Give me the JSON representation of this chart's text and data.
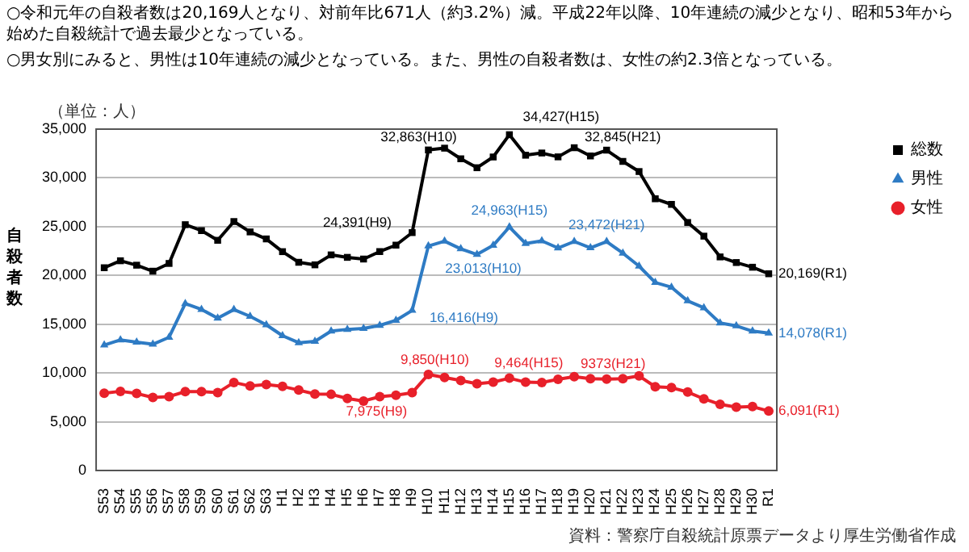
{
  "chart_data": {
    "type": "line",
    "title": "○令和元年の自殺者数は20,169人となり、対前年比671人（約3.2%）減。平成22年以降、10年連続の減少となり、昭和53年から始めた自殺統計で過去最少となっている。",
    "subtitle": "○男女別にみると、男性は10年連続の減少となっている。また、男性の自殺者数は、女性の約2.3倍となっている。",
    "ylabel": "自殺者数",
    "categories": [
      "S53",
      "S54",
      "S55",
      "S56",
      "S57",
      "S58",
      "S59",
      "S60",
      "S61",
      "S62",
      "S63",
      "H1",
      "H2",
      "H3",
      "H4",
      "H5",
      "H6",
      "H7",
      "H8",
      "H9",
      "H10",
      "H11",
      "H12",
      "H13",
      "H14",
      "H15",
      "H16",
      "H17",
      "H18",
      "H19",
      "H20",
      "H21",
      "H22",
      "H23",
      "H24",
      "H25",
      "H26",
      "H27",
      "H28",
      "H29",
      "H30",
      "R1"
    ],
    "series": [
      {
        "name": "総数",
        "color": "#000000",
        "marker": "square",
        "values": [
          20788,
          21503,
          21048,
          20434,
          21228,
          25202,
          24596,
          23599,
          25524,
          24460,
          23742,
          22436,
          21346,
          21084,
          22104,
          21851,
          21679,
          22445,
          23104,
          24391,
          32863,
          33048,
          31957,
          31042,
          32143,
          34427,
          32325,
          32552,
          32155,
          33093,
          32249,
          32845,
          31690,
          30651,
          27858,
          27283,
          25427,
          24025,
          21897,
          21321,
          20840,
          20169
        ]
      },
      {
        "name": "男性",
        "color": "#2e7bc4",
        "marker": "triangle",
        "values": [
          12859,
          13386,
          13155,
          12942,
          13654,
          17116,
          16508,
          15624,
          16497,
          15802,
          14934,
          13818,
          13102,
          13242,
          14296,
          14468,
          14560,
          14874,
          15393,
          16416,
          23013,
          23512,
          22727,
          22144,
          23080,
          24963,
          23272,
          23540,
          22813,
          23478,
          22831,
          23472,
          22283,
          20955,
          19273,
          18787,
          17386,
          16681,
          15121,
          14826,
          14290,
          14078
        ]
      },
      {
        "name": "女性",
        "color": "#e8202a",
        "marker": "circle",
        "values": [
          7929,
          8117,
          7893,
          7492,
          7574,
          8086,
          8088,
          7975,
          9027,
          8658,
          8808,
          8618,
          8244,
          7842,
          7808,
          7383,
          7119,
          7571,
          7711,
          7975,
          9850,
          9536,
          9230,
          8898,
          9063,
          9464,
          9053,
          9012,
          9342,
          9615,
          9418,
          9373,
          9407,
          9696,
          8585,
          8496,
          8041,
          7344,
          6776,
          6495,
          6550,
          6091
        ]
      }
    ],
    "ylim": [
      0,
      35000
    ],
    "yticks": [
      0,
      {
        "value": 5000,
        "label": "5,000"
      },
      {
        "value": 10000,
        "label": "10,000"
      },
      {
        "value": 15000,
        "label": "15,000"
      },
      {
        "value": 20000,
        "label": "20,000"
      },
      {
        "value": 25000,
        "label": "25,000"
      },
      {
        "value": 30000,
        "label": "30,000"
      },
      {
        "value": 35000,
        "label": "35,000"
      }
    ],
    "grid": "y",
    "legend": "right",
    "line_style": "solid",
    "annotations": [
      "（単位：人）",
      "資料：警察庁自殺統計原票データより厚生労働省作成",
      {
        "text": "24,391(H9)",
        "x": "H9",
        "y": 24391
      },
      {
        "text": "32,863(H10)",
        "x": "H10",
        "y": 32863
      },
      {
        "text": "34,427(H15)",
        "x": "H15",
        "y": 34427
      },
      {
        "text": "32,845(H21)",
        "x": "H21",
        "y": 32845
      },
      {
        "text": "20,169(R1)",
        "x": "R1",
        "y": 20169
      },
      {
        "text": "16,416(H9)",
        "x": "H9",
        "y": 16416
      },
      {
        "text": "23,013(H10)",
        "x": "H10",
        "y": 23013
      },
      {
        "text": "24,963(H15)",
        "x": "H15",
        "y": 24963
      },
      {
        "text": "23,472(H21)",
        "x": "H21",
        "y": 23472
      },
      {
        "text": "14,078(R1)",
        "x": "R1",
        "y": 14078
      },
      {
        "text": "7,975(H9)",
        "x": "H9",
        "y": 7975
      },
      {
        "text": "9,850(H10)",
        "x": "H10",
        "y": 9850
      },
      {
        "text": "9,464(H15)",
        "x": "H15",
        "y": 9464
      },
      {
        "text": "9373(H21)",
        "x": "H21",
        "y": 9373
      },
      {
        "text": "6,091(R1)",
        "x": "R1",
        "y": 6091
      }
    ]
  }
}
